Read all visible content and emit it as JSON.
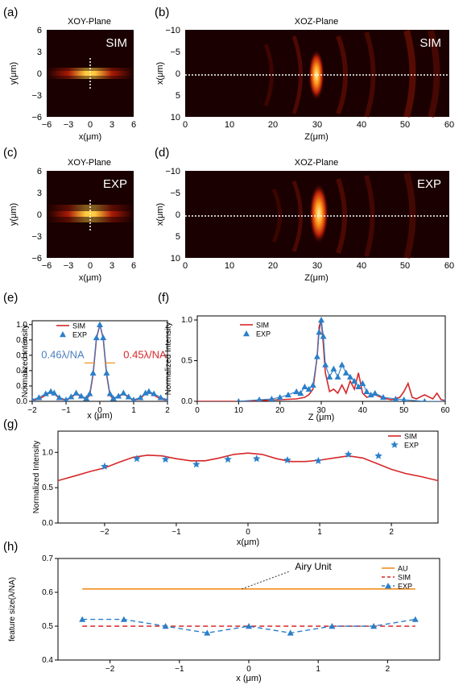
{
  "figure": {
    "panels": {
      "a": {
        "letter": "(a)",
        "title": "XOY-Plane",
        "tag": "SIM",
        "xlabel": "x(μm)",
        "ylabel": "y(μm)",
        "xticks": [
          "−6",
          "−3",
          "0",
          "3",
          "6"
        ],
        "yticks": [
          "6",
          "3",
          "0",
          "−3",
          "−6"
        ]
      },
      "b": {
        "letter": "(b)",
        "title": "XOZ-Plane",
        "tag": "SIM",
        "xlabel": "",
        "ylabel": "x(μm)",
        "xticks": [
          "0",
          "10",
          "20",
          "30",
          "40",
          "50",
          "60"
        ],
        "yticks": [
          "−10",
          "−5",
          "0",
          "5",
          "10"
        ]
      },
      "c": {
        "letter": "(c)",
        "title": "XOY-Plane",
        "tag": "EXP",
        "xlabel": "x(μm)",
        "ylabel": "y(μm)",
        "xticks": [
          "−6",
          "−3",
          "0",
          "3",
          "6"
        ],
        "yticks": [
          "6",
          "3",
          "0",
          "−3",
          "−6"
        ]
      },
      "d": {
        "letter": "(d)",
        "title": "XOZ-Plane",
        "tag": "EXP",
        "xlabel": "Z(μm)",
        "ylabel": "x(μm)",
        "xticks": [
          "0",
          "10",
          "20",
          "30",
          "40",
          "50",
          "60"
        ],
        "yticks": [
          "−10",
          "−5",
          "0",
          "5",
          "10"
        ]
      }
    },
    "panel_b_xlabel": "Z(μm)",
    "colors": {
      "sim": "#d62728",
      "exp": "#2b7fc9",
      "au": "#f28e1c",
      "heat_dark": "#1a0000",
      "heat_mid": "#c0200a",
      "heat_hot": "#fff3a0"
    }
  },
  "chart_data": [
    {
      "panel": "(e)",
      "type": "line",
      "xlabel": "x (μm)",
      "ylabel": "Normalized Intensity",
      "xlim": [
        -2,
        2
      ],
      "ylim": [
        0,
        1.05
      ],
      "xticks": [
        "−2",
        "−1",
        "0",
        "1",
        "2"
      ],
      "yticks": [
        "0.0",
        "0.2",
        "0.4",
        "0.6",
        "0.8",
        "1.0"
      ],
      "legend": [
        "SIM",
        "EXP"
      ],
      "annotations": [
        "0.46λ/NA",
        "0.45λ/NA"
      ],
      "series": [
        {
          "name": "SIM",
          "x": [
            -2.0,
            -1.8,
            -1.6,
            -1.45,
            -1.35,
            -1.2,
            -1.0,
            -0.85,
            -0.7,
            -0.55,
            -0.4,
            -0.3,
            -0.2,
            -0.1,
            0,
            0.1,
            0.2,
            0.3,
            0.4,
            0.55,
            0.7,
            0.85,
            1.0,
            1.2,
            1.35,
            1.45,
            1.6,
            1.8,
            2.0
          ],
          "y": [
            0.01,
            0.03,
            0.08,
            0.12,
            0.1,
            0.04,
            0.01,
            0.05,
            0.1,
            0.06,
            0.03,
            0.08,
            0.35,
            0.82,
            1.0,
            0.82,
            0.35,
            0.08,
            0.03,
            0.06,
            0.1,
            0.05,
            0.01,
            0.04,
            0.1,
            0.12,
            0.08,
            0.03,
            0.01
          ]
        },
        {
          "name": "EXP",
          "x": [
            -2.0,
            -1.8,
            -1.6,
            -1.45,
            -1.35,
            -1.2,
            -1.0,
            -0.85,
            -0.7,
            -0.55,
            -0.4,
            -0.3,
            -0.2,
            -0.1,
            0,
            0.1,
            0.2,
            0.3,
            0.4,
            0.55,
            0.7,
            0.85,
            1.0,
            1.2,
            1.35,
            1.45,
            1.6,
            1.8,
            2.0
          ],
          "y": [
            0.02,
            0.05,
            0.1,
            0.13,
            0.11,
            0.05,
            0.02,
            0.06,
            0.11,
            0.07,
            0.04,
            0.1,
            0.37,
            0.83,
            1.0,
            0.83,
            0.37,
            0.1,
            0.04,
            0.07,
            0.11,
            0.06,
            0.02,
            0.05,
            0.11,
            0.13,
            0.1,
            0.05,
            0.02
          ]
        }
      ]
    },
    {
      "panel": "(f)",
      "type": "line",
      "xlabel": "Z (μm)",
      "ylabel": "Normalized Intensity",
      "xlim": [
        0,
        60
      ],
      "ylim": [
        0,
        1.05
      ],
      "xticks": [
        "0",
        "10",
        "20",
        "30",
        "40",
        "50",
        "60"
      ],
      "yticks": [
        "0.0",
        "0.5",
        "1.0"
      ],
      "legend": [
        "SIM",
        "EXP"
      ],
      "series": [
        {
          "name": "SIM",
          "x": [
            0,
            10,
            15,
            20,
            24,
            26,
            27,
            28,
            29,
            29.5,
            30,
            30.5,
            31,
            32,
            33,
            34,
            35,
            36,
            37,
            38,
            39,
            40,
            41,
            43,
            45,
            47,
            49,
            50,
            51,
            52,
            53,
            55,
            57,
            58,
            59,
            60
          ],
          "y": [
            0,
            0,
            0.01,
            0.02,
            0.03,
            0.05,
            0.08,
            0.15,
            0.55,
            0.92,
            1.0,
            0.7,
            0.35,
            0.12,
            0.15,
            0.1,
            0.2,
            0.1,
            0.25,
            0.15,
            0.35,
            0.1,
            0.05,
            0.08,
            0.04,
            0.02,
            0.05,
            0.12,
            0.22,
            0.05,
            0.03,
            0.08,
            0.03,
            0.1,
            0.02,
            0.01
          ]
        },
        {
          "name": "EXP",
          "x": [
            10,
            15,
            18,
            20,
            22,
            24,
            25,
            26,
            27,
            28,
            29,
            29.5,
            30,
            30.5,
            31,
            32,
            33,
            34,
            35,
            36,
            37,
            38,
            39,
            40,
            41,
            42,
            43,
            45,
            48,
            50,
            55,
            60
          ],
          "y": [
            0,
            0.02,
            0.03,
            0.05,
            0.08,
            0.12,
            0.1,
            0.18,
            0.15,
            0.2,
            0.55,
            0.85,
            1.0,
            0.8,
            0.45,
            0.3,
            0.4,
            0.3,
            0.45,
            0.35,
            0.3,
            0.25,
            0.18,
            0.22,
            0.12,
            0.08,
            0.1,
            0.05,
            0.03,
            0.02,
            0.0,
            0.0
          ]
        }
      ]
    },
    {
      "panel": "(g)",
      "type": "line",
      "xlabel": "x(μm)",
      "ylabel": "Normalized Intensity",
      "xlim": [
        -2.65,
        2.65
      ],
      "ylim": [
        0,
        1.3
      ],
      "xticks": [
        "−2",
        "−1",
        "0",
        "1",
        "2"
      ],
      "yticks": [
        "0.0",
        "0.5",
        "1.0"
      ],
      "legend": [
        "SIM",
        "EXP"
      ],
      "series": [
        {
          "name": "SIM",
          "x": [
            -2.65,
            -2.4,
            -2.2,
            -2.0,
            -1.8,
            -1.6,
            -1.4,
            -1.2,
            -1.0,
            -0.8,
            -0.6,
            -0.4,
            -0.2,
            0,
            0.2,
            0.4,
            0.6,
            0.8,
            1.0,
            1.2,
            1.4,
            1.6,
            1.8,
            2.0,
            2.2,
            2.4,
            2.65
          ],
          "y": [
            0.6,
            0.67,
            0.73,
            0.78,
            0.86,
            0.93,
            0.96,
            0.95,
            0.91,
            0.88,
            0.88,
            0.92,
            0.97,
            0.99,
            0.97,
            0.91,
            0.87,
            0.87,
            0.89,
            0.92,
            0.95,
            0.92,
            0.84,
            0.76,
            0.7,
            0.66,
            0.6
          ]
        },
        {
          "name": "EXP",
          "x": [
            -2.0,
            -1.55,
            -1.15,
            -0.72,
            -0.28,
            0.12,
            0.55,
            0.98,
            1.4,
            1.82
          ],
          "y": [
            0.8,
            0.91,
            0.9,
            0.83,
            0.9,
            0.91,
            0.89,
            0.88,
            0.97,
            0.95
          ]
        }
      ]
    },
    {
      "panel": "(h)",
      "type": "line",
      "xlabel": "x (μm)",
      "ylabel": "feature size(λ/NA)",
      "xlim": [
        -2.75,
        2.75
      ],
      "ylim": [
        0.4,
        0.7
      ],
      "xticks": [
        "−2",
        "−1",
        "0",
        "1",
        "2"
      ],
      "yticks": [
        "0.4",
        "0.5",
        "0.6",
        "0.7"
      ],
      "legend": [
        "AU",
        "SIM",
        "EXP"
      ],
      "annotation": "Airy Unit",
      "series": [
        {
          "name": "AU",
          "x": [
            -2.4,
            2.4
          ],
          "y": [
            0.61,
            0.61
          ]
        },
        {
          "name": "SIM",
          "x": [
            -2.4,
            2.4
          ],
          "y": [
            0.5,
            0.5
          ]
        },
        {
          "name": "EXP",
          "x": [
            -2.4,
            -1.8,
            -1.2,
            -0.6,
            0,
            0.6,
            1.2,
            1.8,
            2.4
          ],
          "y": [
            0.52,
            0.52,
            0.5,
            0.48,
            0.5,
            0.48,
            0.5,
            0.5,
            0.52
          ]
        }
      ]
    }
  ]
}
